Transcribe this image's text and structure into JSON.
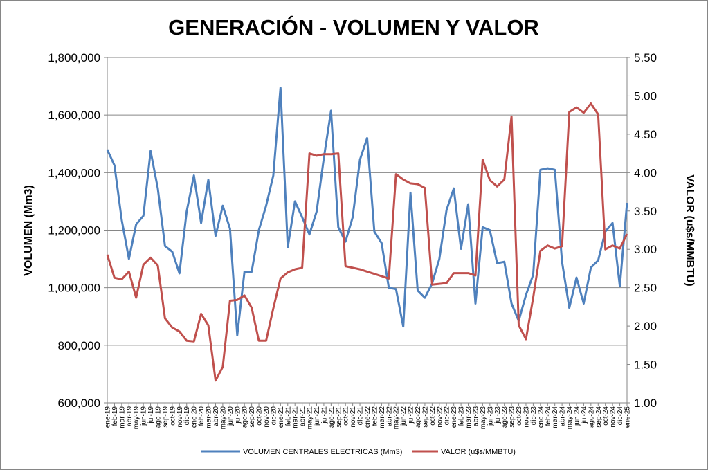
{
  "chart_data": {
    "type": "line",
    "title": "GENERACIÓN - VOLUMEN Y VALOR",
    "ylabel": "VOLUMEN (Mm3)",
    "y2label": "VALOR (u$s/MMBTU)",
    "ylim": [
      600000,
      1800000
    ],
    "y2lim": [
      1.0,
      5.5
    ],
    "y_ticks": [
      "600,000",
      "800,000",
      "1,000,000",
      "1,200,000",
      "1,400,000",
      "1,600,000",
      "1,800,000"
    ],
    "y2_ticks": [
      "1.00",
      "1.50",
      "2.00",
      "2.50",
      "3.00",
      "3.50",
      "4.00",
      "4.50",
      "5.00",
      "5.50"
    ],
    "grid": true,
    "legend_position": "bottom",
    "categories": [
      "ene-19",
      "feb-19",
      "mar-19",
      "abr-19",
      "may-19",
      "jun-19",
      "jul-19",
      "ago-19",
      "sep-19",
      "oct-19",
      "nov-19",
      "dic-19",
      "ene-20",
      "feb-20",
      "mar-20",
      "abr-20",
      "may-20",
      "jun-20",
      "jul-20",
      "ago-20",
      "sep-20",
      "oct-20",
      "nov-20",
      "dic-20",
      "ene-21",
      "feb-21",
      "mar-21",
      "abr-21",
      "may-21",
      "jun-21",
      "jul-21",
      "ago-21",
      "sep-21",
      "oct-21",
      "nov-21",
      "dic-21",
      "ene-22",
      "feb-22",
      "mar-22",
      "abr-22",
      "may-22",
      "jun-22",
      "jul-22",
      "ago-22",
      "sep-22",
      "oct-22",
      "nov-22",
      "dic-22",
      "ene-23",
      "feb-23",
      "mar-23",
      "abr-23",
      "may-23",
      "jun-23",
      "jul-23",
      "ago-23",
      "sep-23",
      "oct-23",
      "nov-23",
      "dic-23",
      "ene-24",
      "feb-24",
      "mar-24",
      "abr-24",
      "may-24",
      "jun-24",
      "jul-24",
      "ago-24",
      "sep-24",
      "oct-24",
      "nov-24",
      "dic-24",
      "ene-25"
    ],
    "series": [
      {
        "name": "VOLUMEN CENTRALES ELECTRICAS (Mm3)",
        "axis": "left",
        "color": "#4f81bd",
        "values": [
          1480000,
          1425000,
          1235000,
          1100000,
          1220000,
          1250000,
          1475000,
          1345000,
          1145000,
          1125000,
          1050000,
          1265000,
          1390000,
          1225000,
          1375000,
          1180000,
          1285000,
          1205000,
          835000,
          1055000,
          1055000,
          1200000,
          1285000,
          1390000,
          1695000,
          1140000,
          1300000,
          1245000,
          1185000,
          1265000,
          1450000,
          1615000,
          1210000,
          1160000,
          1245000,
          1445000,
          1520000,
          1195000,
          1155000,
          1000000,
          995000,
          865000,
          1330000,
          990000,
          965000,
          1015000,
          1100000,
          1270000,
          1345000,
          1135000,
          1290000,
          945000,
          1210000,
          1200000,
          1085000,
          1090000,
          945000,
          885000,
          975000,
          1045000,
          1410000,
          1415000,
          1410000,
          1090000,
          930000,
          1035000,
          945000,
          1070000,
          1095000,
          1195000,
          1225000,
          1005000,
          1295000
        ]
      },
      {
        "name": "VALOR (u$s/MMBTU)",
        "axis": "right",
        "color": "#c0504d",
        "values": [
          2.93,
          2.63,
          2.61,
          2.71,
          2.37,
          2.8,
          2.89,
          2.79,
          2.1,
          1.98,
          1.93,
          1.81,
          1.8,
          2.16,
          2.01,
          1.29,
          1.47,
          2.33,
          2.34,
          2.4,
          2.24,
          1.81,
          1.81,
          2.23,
          2.62,
          2.7,
          2.74,
          2.76,
          4.25,
          4.22,
          4.24,
          4.24,
          4.25,
          2.78,
          2.76,
          2.74,
          2.71,
          2.68,
          2.65,
          2.62,
          3.98,
          3.91,
          3.86,
          3.85,
          3.8,
          2.54,
          2.55,
          2.56,
          2.69,
          2.69,
          2.69,
          2.66,
          4.17,
          3.9,
          3.82,
          3.91,
          4.73,
          2.01,
          1.83,
          2.37,
          2.98,
          3.05,
          3.01,
          3.04,
          4.79,
          4.85,
          4.78,
          4.9,
          4.76,
          3.0,
          3.05,
          3.01,
          3.2
        ]
      }
    ]
  }
}
